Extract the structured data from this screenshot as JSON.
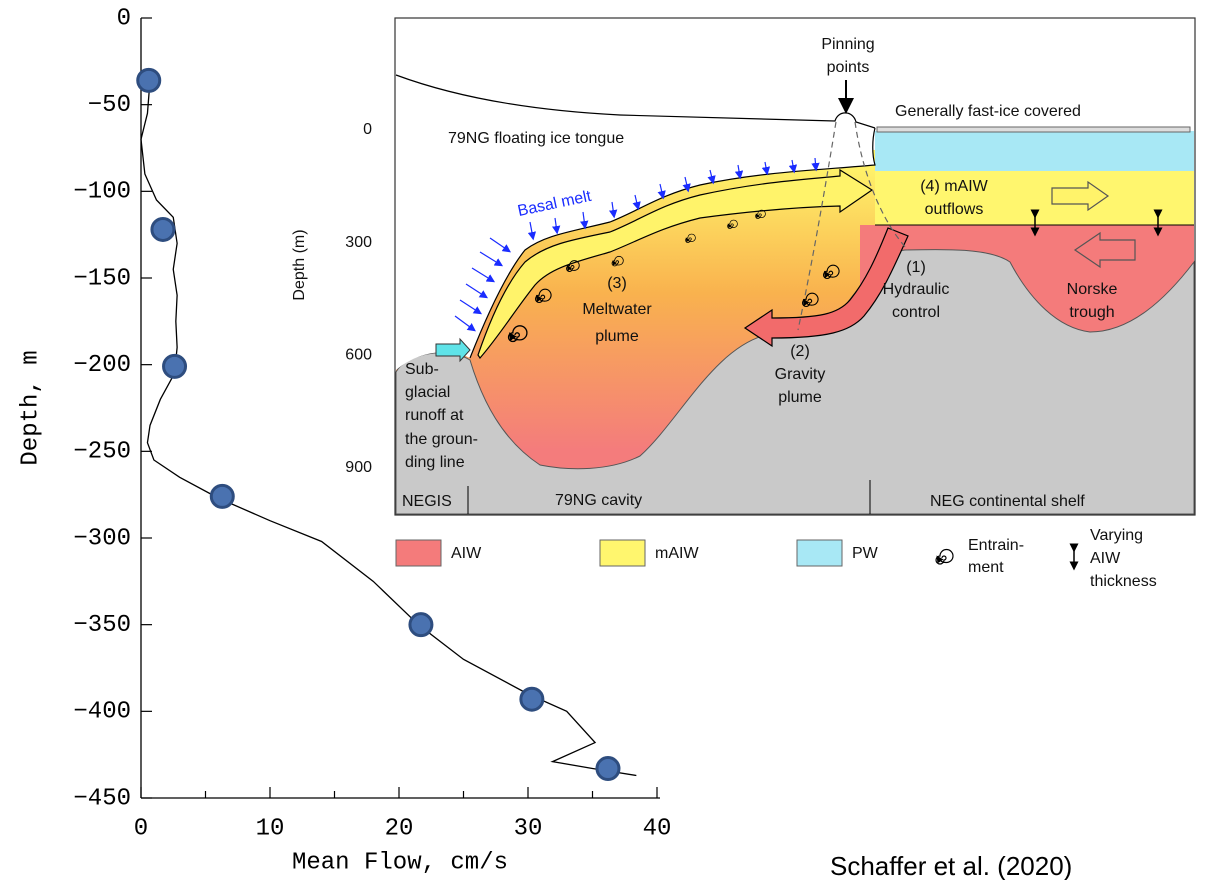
{
  "chart_data": {
    "type": "line",
    "xlabel": "Mean Flow, cm/s",
    "ylabel": "Depth, m",
    "xlim": [
      0,
      40
    ],
    "ylim": [
      -450,
      0
    ],
    "xticks": [
      0,
      10,
      20,
      30,
      40
    ],
    "xminor_ticks": [
      5,
      15,
      25,
      35
    ],
    "yticks": [
      0,
      {
        "value": -50,
        "label": "−50"
      },
      {
        "value": -100,
        "label": "−100"
      },
      {
        "value": -150,
        "label": "−150"
      },
      {
        "value": -200,
        "label": "−200"
      },
      {
        "value": -250,
        "label": "−250"
      },
      {
        "value": -300,
        "label": "−300"
      },
      {
        "value": -350,
        "label": "−350"
      },
      {
        "value": -400,
        "label": "−400"
      },
      {
        "value": -450,
        "label": "−450"
      }
    ],
    "series": [
      {
        "type": "line",
        "color": "#000000",
        "x": [
          0.7,
          0.5,
          0,
          0.3,
          1.2,
          2.5,
          2.8,
          2.5,
          2.8,
          2.7,
          2.8,
          2.6,
          1.5,
          0.7,
          0.5,
          1,
          3,
          6,
          10,
          14,
          18,
          21.5,
          25,
          30,
          33,
          35.2,
          31.9,
          35,
          38.4
        ],
        "values": [
          -36,
          -55,
          -70,
          -90,
          -105,
          -115,
          -130,
          -145,
          -160,
          -175,
          -190,
          -205,
          -220,
          -235,
          -245,
          -255,
          -265,
          -277,
          -290,
          -302,
          -325,
          -350,
          -370,
          -390,
          -400,
          -418,
          -429,
          -433,
          -437
        ]
      },
      {
        "type": "scatter",
        "color": "#4a72b0",
        "x": [
          0.6,
          1.7,
          2.6,
          6.3,
          21.7,
          30.3,
          36.2
        ],
        "values": [
          -36,
          -122,
          -201,
          -276,
          -350,
          -393,
          -433
        ]
      }
    ]
  },
  "citation": "Schaffer et al. (2020)",
  "diagram": {
    "axis_label": "Depth (m)",
    "axis_ticks": [
      0,
      300,
      600,
      900
    ],
    "labels": {
      "pinning_points": [
        "Pinning",
        "points"
      ],
      "fast_ice": "Generally fast-ice covered",
      "ice_tongue": "79NG floating ice tongue",
      "basal_melt": "Basal melt",
      "outflows": [
        "(4) mAIW",
        "outflows"
      ],
      "meltwater_plume": [
        "(3)",
        "Meltwater",
        "plume"
      ],
      "hydraulic_control": [
        "(1)",
        "Hydraulic",
        "control"
      ],
      "norske_trough": [
        "Norske",
        "trough"
      ],
      "gravity_plume": [
        "(2)",
        "Gravity",
        "plume"
      ],
      "runoff": [
        "Sub-",
        "glacial",
        "runoff at",
        "the groun-",
        "ding line"
      ],
      "negis": "NEGIS",
      "cavity": "79NG cavity",
      "shelf": "NEG continental shelf"
    },
    "legend": {
      "aiw": "AIW",
      "maiw": "mAIW",
      "pw": "PW",
      "entrainment": [
        "Entrain-",
        "ment"
      ],
      "thickness": [
        "Varying",
        "AIW",
        "thickness"
      ]
    }
  }
}
